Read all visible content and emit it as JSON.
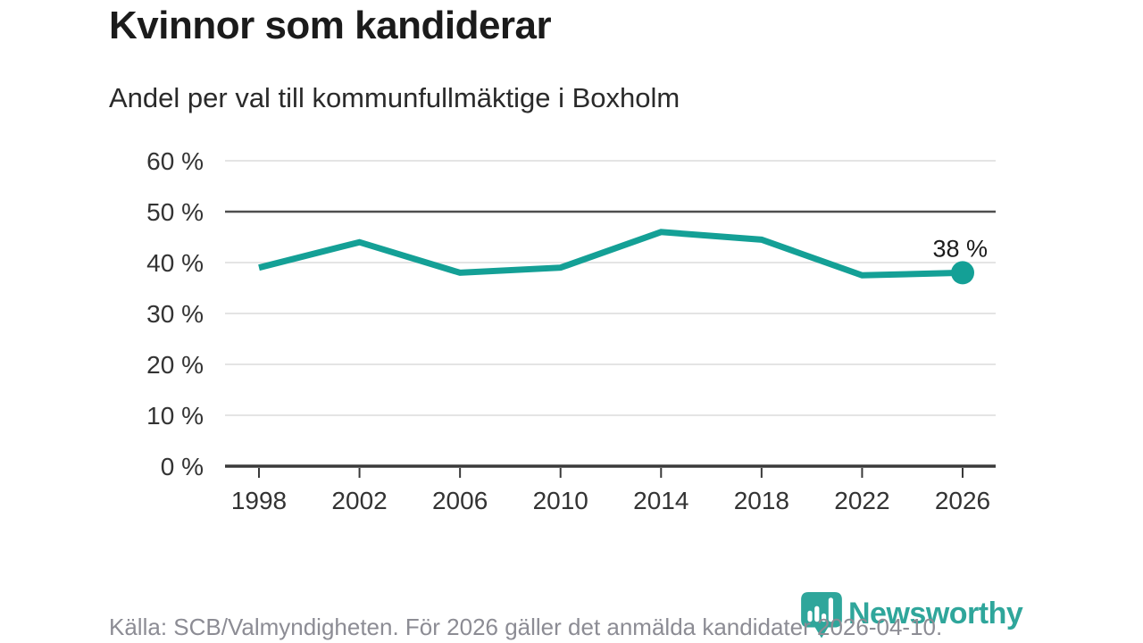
{
  "chart_data": {
    "type": "line",
    "title": "Kvinnor som kandiderar",
    "subtitle": "Andel per val till kommunfullmäktige i Boxholm",
    "categories": [
      "1998",
      "2002",
      "2006",
      "2010",
      "2014",
      "2018",
      "2022",
      "2026"
    ],
    "values": [
      39,
      44,
      38,
      39,
      46,
      44.5,
      37.5,
      38
    ],
    "end_label": "38 %",
    "ylim": [
      0,
      60
    ],
    "yticks": [
      0,
      10,
      20,
      30,
      40,
      50,
      60
    ],
    "ytick_suffix": " %",
    "grid": true,
    "highlight_gridline": 50,
    "legend_position": "none",
    "colors": {
      "line": "#14a096",
      "grid": "#dcdcdc",
      "highlight_grid": "#4f4f4f",
      "axis": "#3a3a3a",
      "tick_label": "#333333",
      "end_label": "#1b1b1b"
    }
  },
  "footer": {
    "source": "Källa: SCB/Valmyndigheten. För 2026 gäller det anmälda kandidater 2026-04-10.",
    "brand": "Newsworthy",
    "brand_color": "#2fa69b"
  },
  "icons": {
    "logo": "pin-bar-chart-icon"
  }
}
